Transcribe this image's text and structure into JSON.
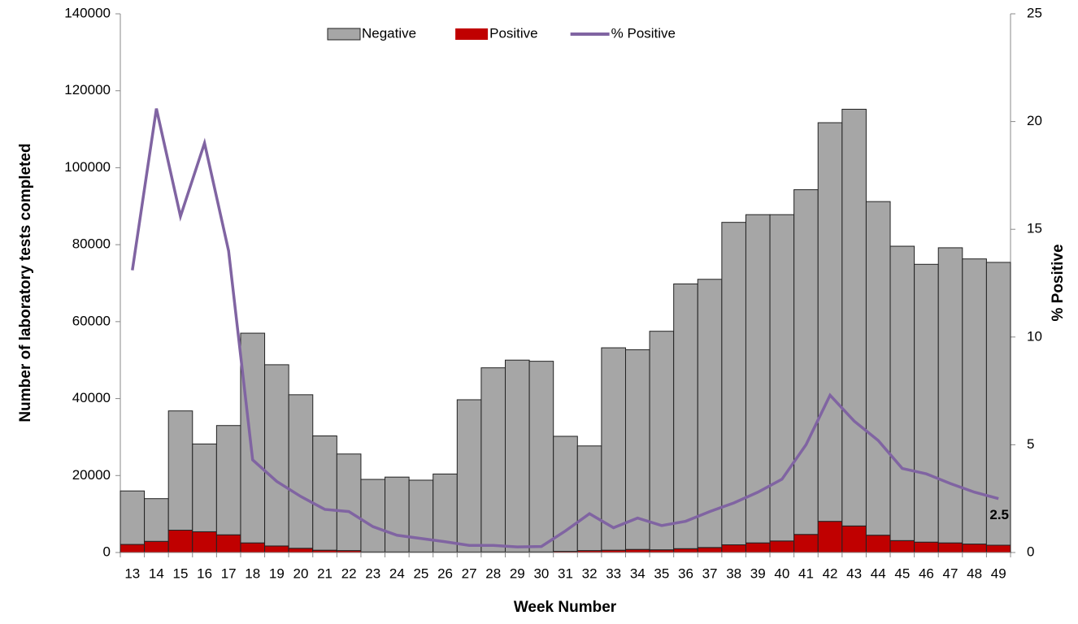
{
  "chart_data": {
    "type": "bar-line",
    "x_label": "Week Number",
    "y_label": "Number of laboratory tests completed",
    "y2_label": "% Positive",
    "categories": [
      "13",
      "14",
      "15",
      "16",
      "17",
      "18",
      "19",
      "20",
      "21",
      "22",
      "23",
      "24",
      "25",
      "26",
      "27",
      "28",
      "29",
      "30",
      "31",
      "32",
      "33",
      "34",
      "35",
      "36",
      "37",
      "38",
      "39",
      "40",
      "41",
      "42",
      "43",
      "44",
      "45",
      "46",
      "47",
      "48",
      "49"
    ],
    "series": [
      {
        "name": "Negative",
        "type": "bar",
        "color": "#a6a6a6",
        "values": [
          13900,
          11100,
          31000,
          22800,
          28400,
          54500,
          47100,
          39900,
          29700,
          25100,
          18850,
          19450,
          18670,
          20280,
          39570,
          47840,
          49870,
          49550,
          29900,
          27200,
          52600,
          51900,
          56800,
          68800,
          69700,
          83800,
          85300,
          84800,
          89600,
          103600,
          108300,
          86700,
          76500,
          72200,
          76700,
          74100,
          73500
        ]
      },
      {
        "name": "Positive",
        "type": "bar",
        "color": "#c00000",
        "values": [
          2100,
          2900,
          5800,
          5400,
          4600,
          2500,
          1700,
          1100,
          600,
          500,
          150,
          150,
          130,
          120,
          130,
          160,
          130,
          150,
          300,
          500,
          600,
          800,
          700,
          1000,
          1300,
          2000,
          2500,
          3000,
          4700,
          8100,
          6900,
          4500,
          3100,
          2700,
          2500,
          2200,
          1900
        ]
      },
      {
        "name": "% Positive",
        "type": "line",
        "axis": "y2",
        "color": "#8064a2",
        "values": [
          13.1,
          20.6,
          15.6,
          19.0,
          14.0,
          4.3,
          3.3,
          2.6,
          2.0,
          1.9,
          1.2,
          0.8,
          0.65,
          0.5,
          0.33,
          0.33,
          0.26,
          0.28,
          1.0,
          1.8,
          1.15,
          1.6,
          1.25,
          1.45,
          1.9,
          2.3,
          2.8,
          3.4,
          5.0,
          7.3,
          6.1,
          5.2,
          3.9,
          3.65,
          3.2,
          2.8,
          2.5
        ]
      }
    ],
    "ylim": [
      0,
      140000
    ],
    "yticks": [
      0,
      20000,
      40000,
      60000,
      80000,
      100000,
      120000,
      140000
    ],
    "y2lim": [
      0,
      25
    ],
    "y2ticks": [
      0,
      5,
      10,
      15,
      20,
      25
    ],
    "stacked": true,
    "legend": "top"
  }
}
